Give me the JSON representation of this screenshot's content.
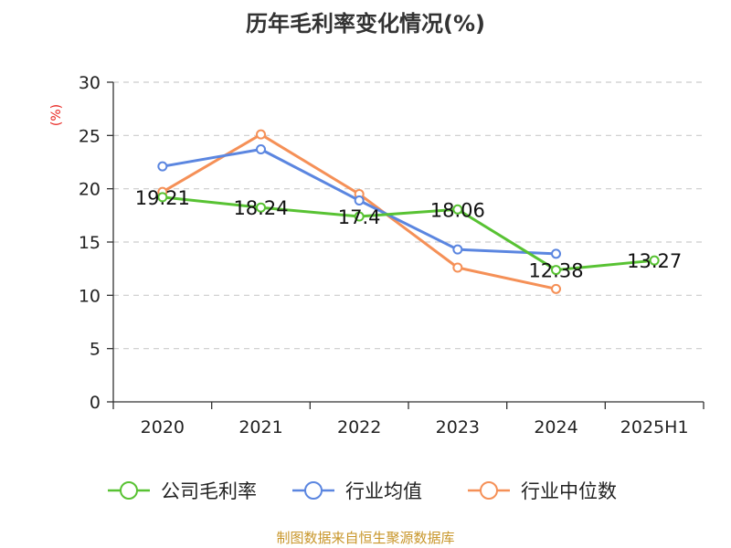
{
  "title": "历年毛利率变化情况(%)",
  "source": "制图数据来自恒生聚源数据库",
  "colors": {
    "company": "#58c233",
    "industry_avg": "#5b86e0",
    "industry_median": "#f59057",
    "ylabel": "#e8231e",
    "source": "#c8962a"
  },
  "chart_data": {
    "type": "line",
    "title": "历年毛利率变化情况(%)",
    "ylabel": "(%)",
    "xlabel": "",
    "categories": [
      "2020",
      "2021",
      "2022",
      "2023",
      "2024",
      "2025H1"
    ],
    "ylim": [
      0,
      30
    ],
    "yticks": [
      0,
      5,
      10,
      15,
      20,
      25,
      30
    ],
    "grid": true,
    "legend_position": "bottom",
    "series": [
      {
        "name": "公司毛利率",
        "color": "#58c233",
        "values": [
          19.21,
          18.24,
          17.4,
          18.06,
          12.38,
          13.27
        ],
        "labels": [
          "19.21",
          "18.24",
          "17.4",
          "18.06",
          "12.38",
          "13.27"
        ]
      },
      {
        "name": "行业均值",
        "color": "#5b86e0",
        "values": [
          22.1,
          23.7,
          18.9,
          14.3,
          13.9,
          null
        ]
      },
      {
        "name": "行业中位数",
        "color": "#f59057",
        "values": [
          19.7,
          25.1,
          19.5,
          12.6,
          10.6,
          null
        ]
      }
    ]
  }
}
